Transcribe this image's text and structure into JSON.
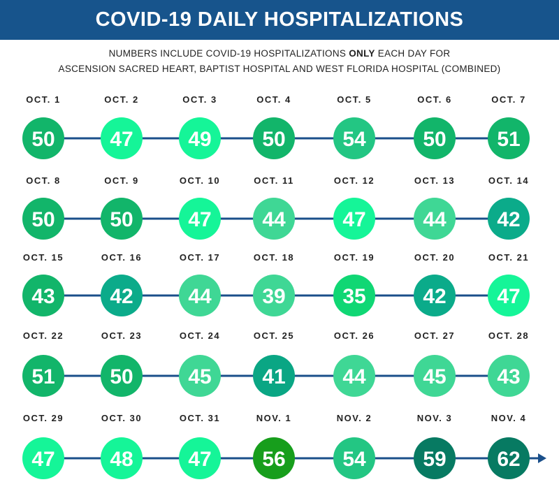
{
  "header": {
    "title": "COVID-19 DAILY HOSPITALIZATIONS"
  },
  "subtitle": {
    "line1_pre": "NUMBERS INCLUDE COVID-19 HOSPITALIZATIONS ",
    "line1_bold": "ONLY",
    "line1_post": " EACH DAY FOR",
    "line2": "ASCENSION SACRED HEART, BAPTIST HOSPITAL AND WEST FLORIDA HOSPITAL (COMBINED)"
  },
  "colors": {
    "line": "#1a4f8a",
    "banner": "#17548c"
  },
  "chart_data": {
    "type": "timeline",
    "title": "COVID-19 DAILY HOSPITALIZATIONS",
    "categories": [
      "OCT. 1",
      "OCT. 2",
      "OCT. 3",
      "OCT. 4",
      "OCT. 5",
      "OCT. 6",
      "OCT. 7",
      "OCT. 8",
      "OCT. 9",
      "OCT. 10",
      "OCT. 11",
      "OCT. 12",
      "OCT. 13",
      "OCT. 14",
      "OCT. 15",
      "OCT. 16",
      "OCT. 17",
      "OCT. 18",
      "OCT. 19",
      "OCT. 20",
      "OCT. 21",
      "OCT. 22",
      "OCT. 23",
      "OCT. 24",
      "OCT. 25",
      "OCT. 26",
      "OCT. 27",
      "OCT. 28",
      "OCT. 29",
      "OCT. 30",
      "OCT. 31",
      "NOV. 1",
      "NOV. 2",
      "NOV. 3",
      "NOV. 4"
    ],
    "values": [
      50,
      47,
      49,
      50,
      54,
      50,
      51,
      50,
      50,
      47,
      44,
      47,
      44,
      42,
      43,
      42,
      44,
      39,
      35,
      42,
      47,
      51,
      50,
      45,
      41,
      44,
      45,
      43,
      47,
      48,
      47,
      56,
      54,
      59,
      62
    ],
    "circle_colors": [
      "#12b56a",
      "#15f598",
      "#15f598",
      "#12b56a",
      "#23c683",
      "#12b56a",
      "#12b56a",
      "#12b56a",
      "#12b56a",
      "#15f598",
      "#3fd795",
      "#15f598",
      "#3fd795",
      "#0bab8a",
      "#12b56a",
      "#0bab8a",
      "#3fd795",
      "#3fd795",
      "#10d774",
      "#0bab8a",
      "#15f598",
      "#12b56a",
      "#12b56a",
      "#3fd795",
      "#0aa684",
      "#3fd795",
      "#3fd795",
      "#3fd795",
      "#15f598",
      "#15f598",
      "#15f598",
      "#179e1c",
      "#23c683",
      "#077a62",
      "#077a62"
    ]
  }
}
